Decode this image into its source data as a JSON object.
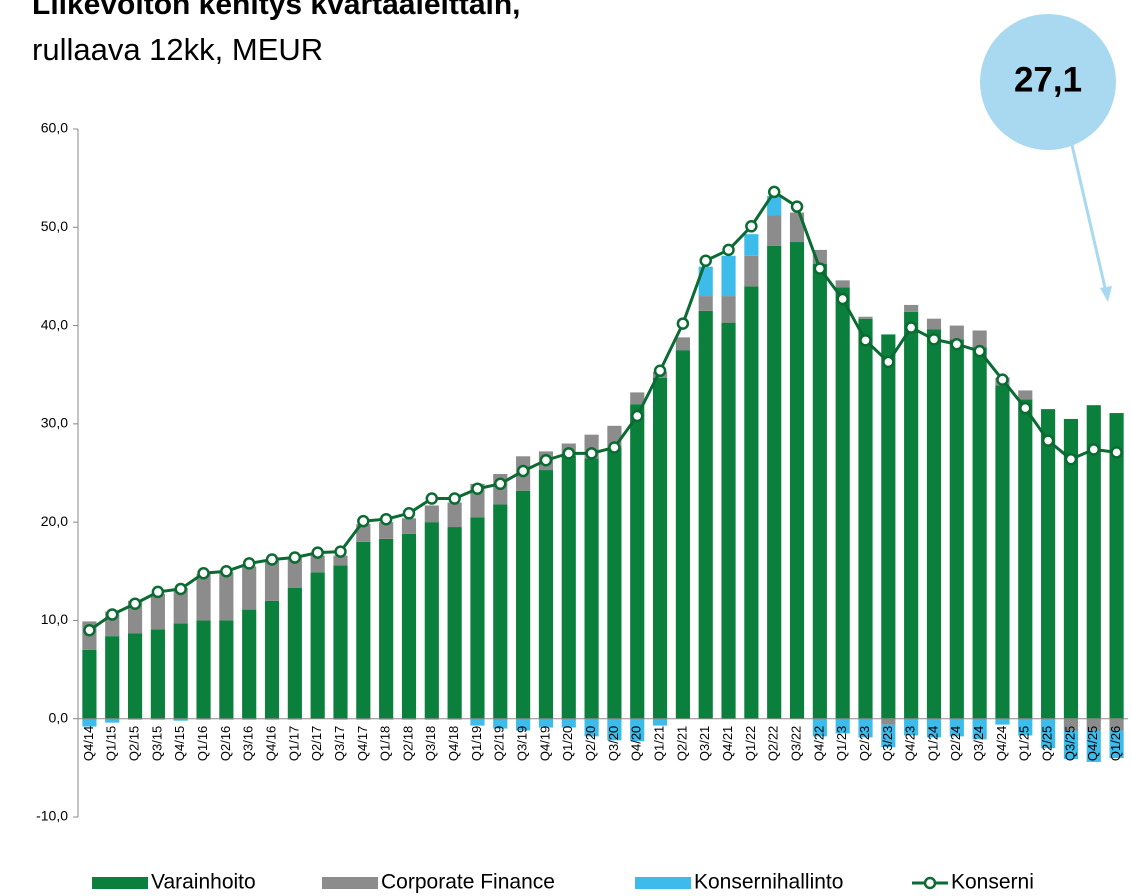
{
  "chart_data": {
    "type": "bar",
    "stacked": true,
    "title": "Liikevoiton kehitys kvartaaleittain,",
    "subtitle": "rullaava 12kk, MEUR",
    "annotation": "27,1",
    "categories": [
      "Q4/14",
      "Q1/15",
      "Q2/15",
      "Q3/15",
      "Q4/15",
      "Q1/16",
      "Q2/16",
      "Q3/16",
      "Q4/16",
      "Q1/17",
      "Q2/17",
      "Q3/17",
      "Q4/17",
      "Q1/18",
      "Q2/18",
      "Q3/18",
      "Q4/18",
      "Q1/19",
      "Q2/19",
      "Q3/19",
      "Q4/19",
      "Q1/20",
      "Q2/20",
      "Q3/20",
      "Q4/20",
      "Q1/21",
      "Q2/21",
      "Q3/21",
      "Q4/21",
      "Q1/22",
      "Q2/22",
      "Q3/22",
      "Q4/22",
      "Q1/23",
      "Q2/23",
      "Q3/23",
      "Q4/23",
      "Q1/24",
      "Q2/24",
      "Q3/24",
      "Q4/24",
      "Q1/25",
      "Q2/25",
      "Q3/25",
      "Q4/25",
      "Q1/26"
    ],
    "series": [
      {
        "name": "Varainhoito",
        "type": "bar",
        "color": "#0b7f3c",
        "values": [
          7.0,
          8.4,
          8.7,
          9.1,
          9.7,
          10.0,
          10.0,
          11.1,
          12.0,
          13.3,
          14.9,
          15.6,
          18.0,
          18.3,
          18.8,
          20.0,
          19.5,
          20.5,
          21.8,
          23.2,
          25.3,
          26.8,
          26.5,
          27.6,
          32.0,
          34.7,
          37.5,
          41.5,
          40.3,
          44.0,
          48.1,
          48.5,
          46.3,
          43.9,
          40.7,
          39.1,
          41.4,
          39.6,
          38.6,
          37.8,
          33.9,
          32.5,
          31.5,
          30.5,
          31.9,
          31.1
        ]
      },
      {
        "name": "Corporate Finance",
        "type": "bar",
        "color": "#8c8c8c",
        "values": [
          2.9,
          2.5,
          3.3,
          3.6,
          3.6,
          4.7,
          4.9,
          4.4,
          4.2,
          3.1,
          1.7,
          1.0,
          1.8,
          1.7,
          1.6,
          1.7,
          2.5,
          3.4,
          3.1,
          3.5,
          1.9,
          1.2,
          2.4,
          2.2,
          1.2,
          0.6,
          1.3,
          1.5,
          2.7,
          3.1,
          3.1,
          3.0,
          1.4,
          0.7,
          0.2,
          -0.6,
          0.7,
          1.1,
          1.4,
          1.7,
          0.8,
          0.9,
          0,
          -1.2,
          -1.2,
          -1.2
        ]
      },
      {
        "name": "Konsernihallinto",
        "type": "bar",
        "color": "#3dbbea",
        "values": [
          -0.8,
          -0.4,
          -0.1,
          -0.1,
          -0.2,
          -0.1,
          -0.1,
          -0.1,
          -0.1,
          -0.1,
          0,
          -0.1,
          -0.1,
          -0.1,
          -0.1,
          -0.1,
          -0.1,
          -0.7,
          -1.0,
          -1.2,
          -0.9,
          -0.9,
          -1.8,
          -2.2,
          -2.3,
          -0.7,
          0,
          3.0,
          4.1,
          2.2,
          2.0,
          0,
          -1.8,
          -1.5,
          -1.9,
          -2.3,
          -1.7,
          -1.9,
          -1.8,
          -2.1,
          -0.6,
          -1.7,
          -3.0,
          -2.9,
          -3.2,
          -2.8
        ]
      },
      {
        "name": "Konserni",
        "type": "line",
        "color": "#0b6b32",
        "marker": true,
        "values": [
          9.0,
          10.6,
          11.7,
          12.9,
          13.2,
          14.8,
          15.0,
          15.8,
          16.2,
          16.4,
          16.9,
          17.0,
          20.1,
          20.3,
          20.9,
          22.4,
          22.4,
          23.4,
          23.9,
          25.2,
          26.3,
          27.0,
          27.0,
          27.6,
          30.8,
          35.4,
          40.2,
          46.6,
          47.7,
          50.1,
          53.6,
          52.1,
          45.8,
          42.7,
          38.5,
          36.3,
          39.8,
          38.6,
          38.1,
          37.4,
          34.5,
          31.6,
          28.3,
          26.4,
          27.4,
          27.1
        ]
      }
    ],
    "ylim": [
      -10,
      60
    ],
    "yticks": [
      {
        "value": -10,
        "label": "-10,0"
      },
      {
        "value": 0,
        "label": "0,0"
      },
      {
        "value": 10,
        "label": "10,0"
      },
      {
        "value": 20,
        "label": "20,0"
      },
      {
        "value": 30,
        "label": "30,0"
      },
      {
        "value": 40,
        "label": "40,0"
      },
      {
        "value": 50,
        "label": "50,0"
      },
      {
        "value": 60,
        "label": "60,0"
      }
    ],
    "grid": false,
    "legend": "bottom"
  }
}
